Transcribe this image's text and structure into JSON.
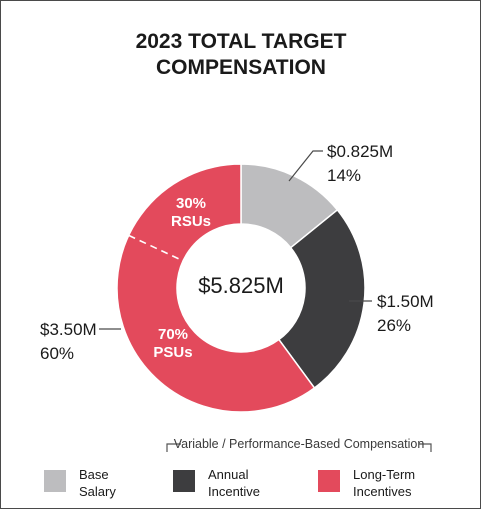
{
  "chart_data": {
    "type": "pie",
    "variant": "donut",
    "title_lines": [
      "2023 TOTAL TARGET",
      "COMPENSATION"
    ],
    "center_label": "$5.825M",
    "total": 5.825,
    "slices": [
      {
        "key": "base",
        "value": 0.825,
        "amount_label": "$0.825M",
        "percent_label": "14%",
        "color": "#bdbdbf"
      },
      {
        "key": "annual",
        "value": 1.5,
        "amount_label": "$1.50M",
        "percent_label": "26%",
        "color": "#3d3d3f"
      },
      {
        "key": "ltip",
        "value": 3.5,
        "amount_label": "$3.50M",
        "percent_label": "60%",
        "color": "#e34a5c"
      }
    ],
    "ltip_split": [
      {
        "name": "RSUs",
        "percent_label": "30%",
        "fraction": 0.3
      },
      {
        "name": "PSUs",
        "percent_label": "70%",
        "fraction": 0.7
      }
    ],
    "legend": {
      "placement": "bottom",
      "bracket_label": "Variable / Performance-Based Compensation",
      "items": [
        {
          "key": "base",
          "lines": [
            "Base",
            "Salary"
          ],
          "color": "#bdbdbf"
        },
        {
          "key": "annual",
          "lines": [
            "Annual",
            "Incentive"
          ],
          "color": "#3d3d3f"
        },
        {
          "key": "ltip",
          "lines": [
            "Long-Term",
            "Incentives"
          ],
          "color": "#e34a5c"
        }
      ]
    }
  }
}
